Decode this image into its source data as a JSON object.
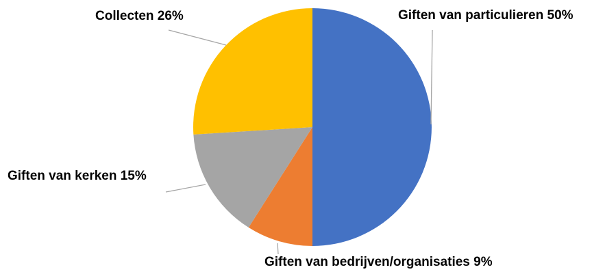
{
  "chart_data": {
    "type": "pie",
    "title": "",
    "start_angle_deg": 90,
    "direction": "clockwise",
    "legend": "none",
    "slices": [
      {
        "label": "Giften van particulieren 50%",
        "category": "Giften van particulieren",
        "value": 50,
        "color": "#4472C4"
      },
      {
        "label": "Giften van bedrijven/organisaties 9%",
        "category": "Giften van bedrijven/organisaties",
        "value": 9,
        "color": "#ED7D31"
      },
      {
        "label": "Giften van kerken 15%",
        "category": "Giften van kerken",
        "value": 15,
        "color": "#A5A5A5"
      },
      {
        "label": "Collecten 26%",
        "category": "Collecten",
        "value": 26,
        "color": "#FFC000"
      }
    ],
    "leader_line_color": "#A6A6A6"
  }
}
